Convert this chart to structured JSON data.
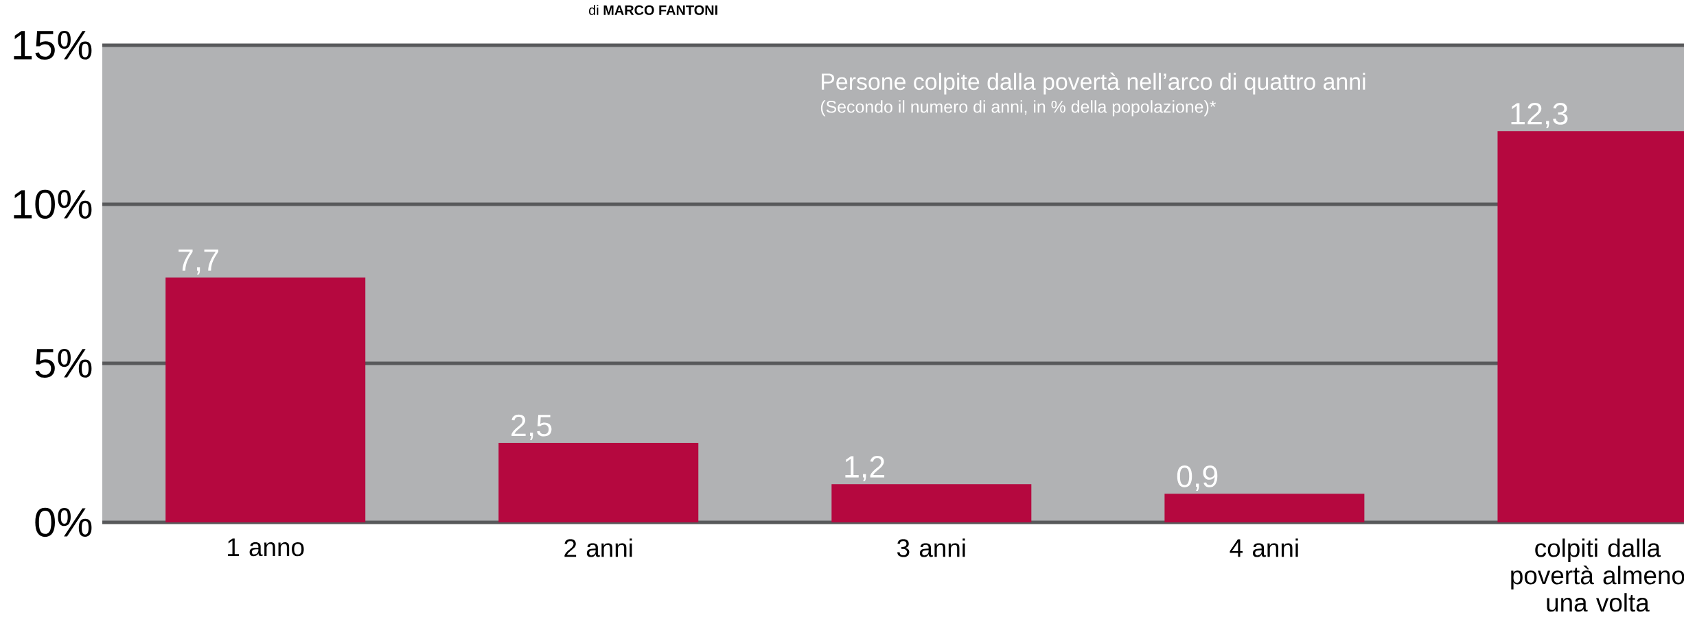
{
  "chart_data": {
    "type": "bar",
    "title": "Persone colpite dalla povertà nell’arco di quattro anni",
    "subtitle": "(Secondo il numero di anni, in % della popolazione)*",
    "annotations": [
      "di **MARCO FANTONI**"
    ],
    "categories": [
      "1 anno",
      "2 anni",
      "3 anni",
      "4 anni",
      "colpiti dalla povertà almeno una volta"
    ],
    "values": [
      7.7,
      2.5,
      1.2,
      0.9,
      12.3
    ],
    "value_labels": [
      "7,7",
      "2,5",
      "1,2",
      "0,9",
      "12,3"
    ],
    "color": "#b5083f",
    "ylim": [
      0,
      15
    ],
    "yticks": [
      {
        "value": 0,
        "label": "0%"
      },
      {
        "value": 5,
        "label": "5%"
      },
      {
        "value": 10,
        "label": "10%"
      },
      {
        "value": 15,
        "label": "15%"
      }
    ],
    "grid": "y"
  }
}
